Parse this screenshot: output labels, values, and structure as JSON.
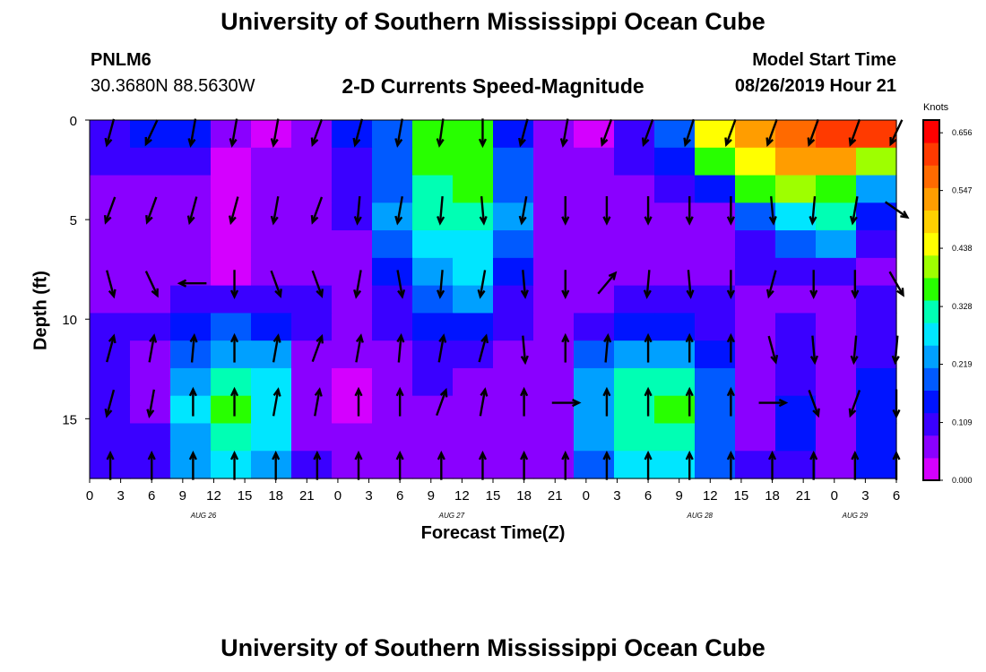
{
  "header": {
    "title": "University of Southern Mississippi Ocean Cube",
    "station_id": "PNLM6",
    "station_location": "30.3680N 88.5630W",
    "subtitle": "2-D Currents Speed-Magnitude",
    "model_start_label": "Model Start Time",
    "model_start_value": "08/26/2019 Hour 21"
  },
  "footer": {
    "title": "University of Southern Mississippi Ocean Cube"
  },
  "colors": {
    "scale": [
      "#d400ff",
      "#8a00ff",
      "#3a00ff",
      "#0014ff",
      "#005aff",
      "#00a0ff",
      "#00e6ff",
      "#00ffb4",
      "#28ff00",
      "#9eff00",
      "#ffff00",
      "#ffd000",
      "#ff9d00",
      "#ff6a00",
      "#ff3a00",
      "#ff0000"
    ],
    "arrow": "#000000"
  },
  "chart_data": {
    "type": "heatmap",
    "title": "2-D Currents Speed-Magnitude",
    "xlabel": "Forecast Time(Z)",
    "ylabel": "Depth (ft)",
    "units": "Knots",
    "x_ticks": [
      "0",
      "3",
      "6",
      "9",
      "12",
      "15",
      "18",
      "21",
      "0",
      "3",
      "6",
      "9",
      "12",
      "15",
      "18",
      "21",
      "0",
      "3",
      "6",
      "9",
      "12",
      "15",
      "18",
      "21",
      "0",
      "3",
      "6"
    ],
    "date_labels": [
      {
        "label": "AUG 26",
        "at_hour": 11
      },
      {
        "label": "AUG 27",
        "at_hour": 35
      },
      {
        "label": "AUG 28",
        "at_hour": 59
      },
      {
        "label": "AUG 29",
        "at_hour": 74
      }
    ],
    "x_range_hours": [
      0,
      78
    ],
    "y_ticks": [
      0,
      5,
      10,
      15
    ],
    "ylim": [
      18,
      0
    ],
    "colorbar": {
      "ticks": [
        0.0,
        0.109,
        0.219,
        0.328,
        0.438,
        0.547,
        0.656
      ],
      "tick_labels": [
        "0.000",
        "0.109",
        "0.219",
        "0.328",
        "0.438",
        "0.547",
        "0.656"
      ],
      "range": [
        0,
        0.68
      ]
    },
    "depths": [
      0,
      1.5,
      3,
      4.5,
      6,
      7.5,
      9,
      10.5,
      12,
      13.5,
      15,
      16.5,
      18
    ],
    "times": [
      0,
      4,
      8,
      12,
      16,
      20,
      24,
      28,
      32,
      36,
      40,
      44,
      48,
      52,
      56,
      60,
      64,
      68,
      72,
      76
    ],
    "speed": [
      [
        0.12,
        0.13,
        0.15,
        0.05,
        0.04,
        0.06,
        0.14,
        0.17,
        0.35,
        0.36,
        0.14,
        0.07,
        0.04,
        0.12,
        0.2,
        0.45,
        0.55,
        0.57,
        0.6,
        0.6
      ],
      [
        0.1,
        0.1,
        0.1,
        0.03,
        0.05,
        0.07,
        0.12,
        0.18,
        0.34,
        0.35,
        0.18,
        0.07,
        0.05,
        0.1,
        0.14,
        0.35,
        0.45,
        0.55,
        0.55,
        0.4
      ],
      [
        0.08,
        0.07,
        0.08,
        0.02,
        0.05,
        0.08,
        0.11,
        0.2,
        0.32,
        0.34,
        0.21,
        0.07,
        0.06,
        0.08,
        0.1,
        0.15,
        0.38,
        0.4,
        0.38,
        0.25
      ],
      [
        0.06,
        0.05,
        0.06,
        0.02,
        0.05,
        0.07,
        0.09,
        0.22,
        0.3,
        0.32,
        0.22,
        0.06,
        0.05,
        0.06,
        0.06,
        0.08,
        0.2,
        0.28,
        0.3,
        0.15
      ],
      [
        0.05,
        0.05,
        0.05,
        0.03,
        0.06,
        0.07,
        0.07,
        0.2,
        0.27,
        0.29,
        0.2,
        0.06,
        0.06,
        0.05,
        0.05,
        0.07,
        0.12,
        0.2,
        0.22,
        0.1
      ],
      [
        0.06,
        0.06,
        0.07,
        0.04,
        0.07,
        0.07,
        0.06,
        0.16,
        0.25,
        0.27,
        0.15,
        0.06,
        0.07,
        0.07,
        0.07,
        0.08,
        0.09,
        0.1,
        0.1,
        0.07
      ],
      [
        0.08,
        0.08,
        0.1,
        0.1,
        0.11,
        0.09,
        0.07,
        0.12,
        0.2,
        0.22,
        0.1,
        0.06,
        0.08,
        0.1,
        0.1,
        0.1,
        0.08,
        0.08,
        0.08,
        0.09
      ],
      [
        0.1,
        0.09,
        0.15,
        0.18,
        0.16,
        0.09,
        0.07,
        0.09,
        0.13,
        0.14,
        0.09,
        0.07,
        0.12,
        0.15,
        0.16,
        0.12,
        0.07,
        0.09,
        0.08,
        0.1
      ],
      [
        0.11,
        0.08,
        0.2,
        0.25,
        0.22,
        0.08,
        0.05,
        0.07,
        0.1,
        0.1,
        0.08,
        0.06,
        0.18,
        0.24,
        0.25,
        0.15,
        0.06,
        0.11,
        0.06,
        0.12
      ],
      [
        0.12,
        0.08,
        0.24,
        0.32,
        0.26,
        0.07,
        0.04,
        0.06,
        0.09,
        0.08,
        0.06,
        0.06,
        0.22,
        0.3,
        0.31,
        0.18,
        0.06,
        0.12,
        0.05,
        0.15
      ],
      [
        0.11,
        0.07,
        0.26,
        0.35,
        0.28,
        0.07,
        0.04,
        0.06,
        0.08,
        0.07,
        0.05,
        0.06,
        0.24,
        0.33,
        0.34,
        0.2,
        0.07,
        0.14,
        0.05,
        0.16
      ],
      [
        0.1,
        0.09,
        0.25,
        0.33,
        0.26,
        0.08,
        0.05,
        0.05,
        0.07,
        0.06,
        0.05,
        0.07,
        0.22,
        0.31,
        0.32,
        0.19,
        0.08,
        0.13,
        0.06,
        0.15
      ],
      [
        0.09,
        0.1,
        0.22,
        0.28,
        0.23,
        0.09,
        0.07,
        0.06,
        0.07,
        0.06,
        0.06,
        0.08,
        0.19,
        0.26,
        0.27,
        0.17,
        0.09,
        0.12,
        0.08,
        0.14
      ]
    ],
    "arrow_times": [
      0,
      4,
      8,
      12,
      16,
      20,
      24,
      28,
      32,
      36,
      40,
      44,
      48,
      52,
      56,
      60,
      64,
      68,
      72,
      76
    ],
    "arrow_depths": [
      0.6,
      4.5,
      8.2,
      11.5,
      14.2,
      17.4
    ],
    "arrow_angles": [
      [
        195,
        205,
        190,
        190,
        190,
        200,
        195,
        190,
        188,
        180,
        195,
        190,
        200,
        200,
        198,
        200,
        200,
        200,
        200,
        205
      ],
      [
        200,
        200,
        195,
        195,
        190,
        200,
        185,
        190,
        185,
        175,
        190,
        180,
        180,
        180,
        180,
        180,
        175,
        185,
        190,
        125
      ],
      [
        165,
        155,
        270,
        180,
        160,
        160,
        190,
        170,
        185,
        190,
        175,
        180,
        40,
        185,
        175,
        180,
        195,
        180,
        180,
        150
      ],
      [
        15,
        10,
        5,
        0,
        10,
        20,
        10,
        5,
        10,
        15,
        175,
        0,
        5,
        0,
        0,
        0,
        165,
        175,
        185,
        185
      ],
      [
        195,
        190,
        0,
        0,
        10,
        10,
        0,
        0,
        20,
        10,
        0,
        90,
        0,
        0,
        0,
        0,
        90,
        160,
        200,
        180
      ],
      [
        0,
        0,
        0,
        0,
        0,
        0,
        0,
        0,
        0,
        0,
        0,
        0,
        0,
        0,
        0,
        0,
        0,
        0,
        0,
        0
      ]
    ]
  }
}
